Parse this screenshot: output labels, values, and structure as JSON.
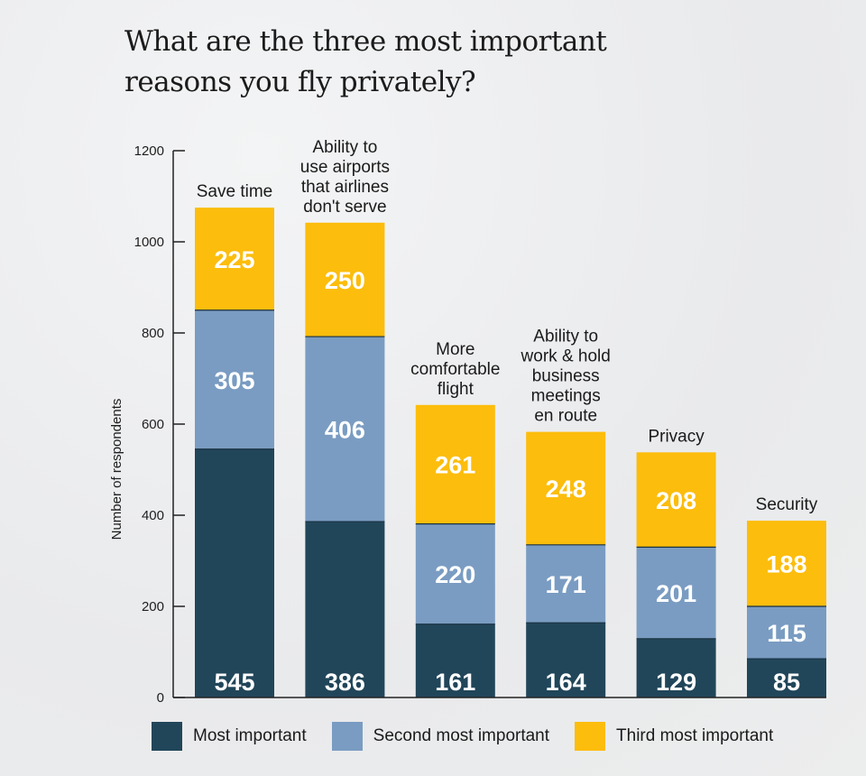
{
  "chart_data": {
    "type": "bar",
    "stacked": true,
    "title": "What are the three most important reasons you fly privately?",
    "ylabel": "Number of respondents",
    "ylim": [
      0,
      1200
    ],
    "yticks": [
      0,
      200,
      400,
      600,
      800,
      1000,
      1200
    ],
    "categories": [
      "Save time",
      "Ability to use airports that airlines don't serve",
      "More comfortable flight",
      "Ability to work & hold business meetings en route",
      "Privacy",
      "Security"
    ],
    "category_label_lines": [
      [
        "Save time"
      ],
      [
        "Ability to",
        "use airports",
        "that airlines",
        "don't serve"
      ],
      [
        "More",
        "comfortable",
        "flight"
      ],
      [
        "Ability to",
        "work & hold",
        "business",
        "meetings",
        "en route"
      ],
      [
        "Privacy"
      ],
      [
        "Security"
      ]
    ],
    "series": [
      {
        "name": "Most important",
        "color": "#21465a",
        "values": [
          545,
          386,
          161,
          164,
          129,
          85
        ]
      },
      {
        "name": "Second most important",
        "color": "#7a9cc2",
        "values": [
          305,
          406,
          220,
          171,
          201,
          115
        ]
      },
      {
        "name": "Third most important",
        "color": "#fcbd0c",
        "values": [
          225,
          250,
          261,
          248,
          208,
          188
        ]
      }
    ],
    "legend_position": "bottom"
  }
}
